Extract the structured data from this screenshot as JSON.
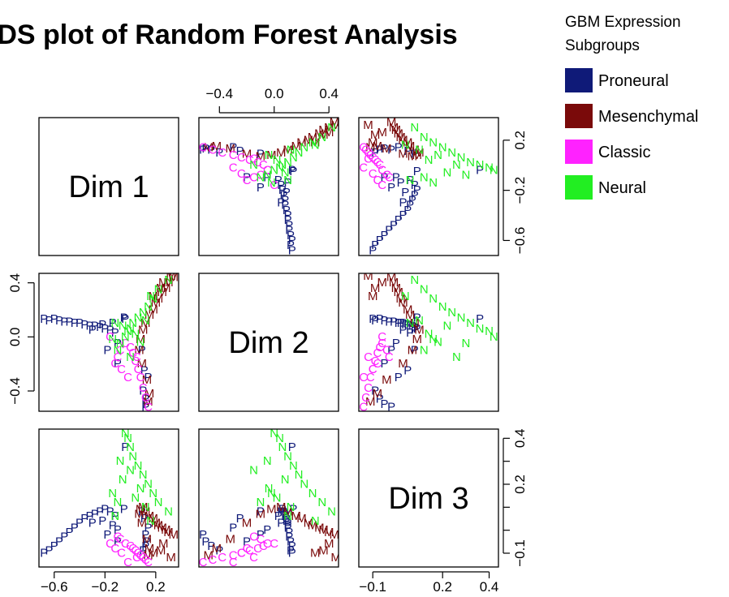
{
  "chart_data": {
    "type": "scatter",
    "title": "MDS plot of Random Forest Analysis",
    "matrix_type": "pairs",
    "diagonal_labels": [
      "Dim 1",
      "Dim 2",
      "Dim 3"
    ],
    "axes": {
      "dim1": {
        "range": [
          -0.72,
          0.38
        ],
        "ticks": [
          -0.6,
          -0.2,
          0.2
        ],
        "tick_labels": [
          "-0.6",
          "-0.2",
          "0.2"
        ]
      },
      "dim2": {
        "range": [
          -0.55,
          0.47
        ],
        "ticks": [
          -0.4,
          0.0,
          0.4
        ],
        "tick_labels": [
          "-0.4",
          "0.0",
          "0.4"
        ]
      },
      "dim3": {
        "range": [
          -0.16,
          0.44
        ],
        "ticks": [
          -0.1,
          0.2,
          0.4
        ],
        "tick_labels": [
          "-0.1",
          "0.2",
          "0.4"
        ]
      }
    },
    "dim3_minor_ticks": [
      0.0,
      0.1,
      0.3
    ],
    "grid": false,
    "legend": {
      "title_lines": [
        "GBM Expression",
        "Subgroups"
      ],
      "position": "top-right",
      "entries": [
        {
          "label": "Proneural",
          "color": "#0f1a78"
        },
        {
          "label": "Mesenchymal",
          "color": "#7a0a0a"
        },
        {
          "label": "Classic",
          "color": "#ff22ff"
        },
        {
          "label": "Neural",
          "color": "#22ee22"
        }
      ]
    },
    "series": [
      {
        "name": "Proneural",
        "marker": "P",
        "color": "#0f1a78",
        "points": [
          [
            -0.68,
            0.13,
            -0.1
          ],
          [
            -0.64,
            0.12,
            -0.09
          ],
          [
            -0.6,
            0.13,
            -0.07
          ],
          [
            -0.56,
            0.12,
            -0.05
          ],
          [
            -0.52,
            0.11,
            -0.03
          ],
          [
            -0.48,
            0.11,
            -0.01
          ],
          [
            -0.44,
            0.1,
            0.01
          ],
          [
            -0.4,
            0.1,
            0.03
          ],
          [
            -0.36,
            0.09,
            0.05
          ],
          [
            -0.32,
            0.08,
            0.06
          ],
          [
            -0.28,
            0.08,
            0.07
          ],
          [
            -0.24,
            0.07,
            0.08
          ],
          [
            -0.2,
            0.06,
            0.09
          ],
          [
            -0.16,
            0.05,
            0.08
          ],
          [
            -0.12,
            0.03,
            0.06
          ],
          [
            -0.22,
            0.09,
            0.04
          ],
          [
            -0.3,
            0.05,
            0.03
          ],
          [
            -0.14,
            0.1,
            0.02
          ],
          [
            -0.1,
            -0.05,
            0.0
          ],
          [
            -0.18,
            -0.1,
            -0.02
          ],
          [
            -0.05,
            0.14,
            0.09
          ],
          [
            -0.04,
            0.13,
            0.36
          ],
          [
            -0.1,
            -0.2,
            -0.05
          ],
          [
            0.1,
            -0.4,
            -0.09
          ],
          [
            0.12,
            -0.46,
            -0.07
          ],
          [
            0.13,
            -0.5,
            -0.05
          ],
          [
            0.12,
            -0.52,
            -0.02
          ],
          [
            0.14,
            -0.3,
            0.01
          ],
          [
            0.11,
            -0.25,
            0.05
          ],
          [
            0.09,
            -0.1,
            0.08
          ]
        ]
      },
      {
        "name": "Mesenchymal",
        "marker": "M",
        "color": "#7a0a0a",
        "points": [
          [
            0.34,
            0.44,
            -0.02
          ],
          [
            0.3,
            0.4,
            -0.01
          ],
          [
            0.28,
            0.36,
            0.0
          ],
          [
            0.25,
            0.33,
            0.01
          ],
          [
            0.22,
            0.28,
            0.02
          ],
          [
            0.2,
            0.25,
            0.03
          ],
          [
            0.18,
            0.2,
            0.05
          ],
          [
            0.15,
            0.16,
            0.06
          ],
          [
            0.12,
            0.1,
            0.08
          ],
          [
            0.1,
            0.05,
            0.1
          ],
          [
            0.08,
            -0.02,
            0.09
          ],
          [
            0.07,
            -0.1,
            0.07
          ],
          [
            0.09,
            -0.2,
            0.03
          ],
          [
            0.13,
            -0.32,
            -0.04
          ],
          [
            0.15,
            -0.42,
            -0.08
          ],
          [
            0.14,
            -0.48,
            -0.11
          ],
          [
            0.24,
            0.36,
            -0.09
          ],
          [
            0.26,
            0.4,
            -0.06
          ],
          [
            0.18,
            0.3,
            -0.1
          ],
          [
            0.32,
            0.45,
            -0.12
          ]
        ]
      },
      {
        "name": "Classic",
        "marker": "C",
        "color": "#ff22ff",
        "points": [
          [
            0.14,
            -0.52,
            -0.14
          ],
          [
            0.12,
            -0.45,
            -0.13
          ],
          [
            0.1,
            -0.38,
            -0.12
          ],
          [
            0.08,
            -0.3,
            -0.11
          ],
          [
            0.06,
            -0.24,
            -0.1
          ],
          [
            0.04,
            -0.18,
            -0.09
          ],
          [
            0.02,
            -0.12,
            -0.08
          ],
          [
            0.0,
            -0.08,
            -0.07
          ],
          [
            -0.04,
            -0.05,
            -0.06
          ],
          [
            -0.08,
            -0.1,
            -0.04
          ],
          [
            -0.1,
            -0.15,
            -0.03
          ],
          [
            -0.12,
            -0.2,
            -0.08
          ],
          [
            -0.16,
            0.0,
            -0.06
          ],
          [
            0.05,
            -0.15,
            -0.12
          ],
          [
            -0.07,
            -0.24,
            -0.1
          ],
          [
            -0.02,
            -0.3,
            -0.14
          ]
        ]
      },
      {
        "name": "Neural",
        "marker": "N",
        "color": "#22ee22",
        "points": [
          [
            0.3,
            0.42,
            0.08
          ],
          [
            0.22,
            0.35,
            0.12
          ],
          [
            0.18,
            0.28,
            0.16
          ],
          [
            0.14,
            0.22,
            0.2
          ],
          [
            0.1,
            0.18,
            0.24
          ],
          [
            0.06,
            0.14,
            0.28
          ],
          [
            0.02,
            0.1,
            0.32
          ],
          [
            0.0,
            0.06,
            0.36
          ],
          [
            -0.02,
            0.04,
            0.4
          ],
          [
            -0.04,
            0.0,
            0.42
          ],
          [
            -0.08,
            -0.05,
            0.3
          ],
          [
            -0.06,
            0.08,
            0.22
          ],
          [
            0.04,
            0.02,
            0.14
          ],
          [
            0.08,
            -0.04,
            0.18
          ],
          [
            0.12,
            0.12,
            0.1
          ],
          [
            -0.1,
            -0.1,
            0.12
          ],
          [
            -0.12,
            0.1,
            0.06
          ],
          [
            0.16,
            0.3,
            0.04
          ],
          [
            -0.14,
            -0.02,
            0.16
          ],
          [
            0.0,
            -0.15,
            0.26
          ]
        ]
      }
    ]
  }
}
